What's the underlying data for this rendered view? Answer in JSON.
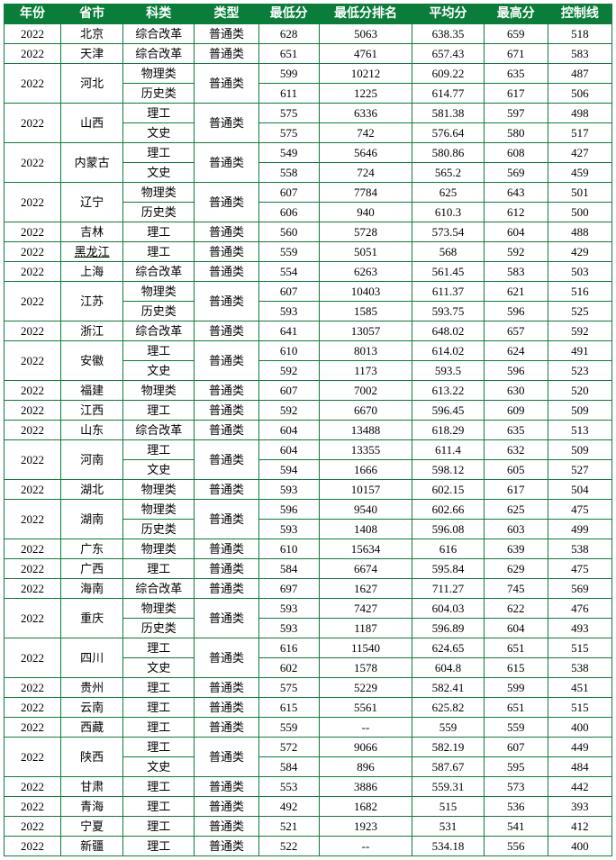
{
  "headers": [
    "年份",
    "省市",
    "科类",
    "类型",
    "最低分",
    "最低分排名",
    "平均分",
    "最高分",
    "控制线"
  ],
  "underlinedProvinces": [
    "黑龙江"
  ],
  "rows": [
    {
      "year": "2022",
      "prov": "北京",
      "subj": "综合改革",
      "type": "普通类",
      "min": "628",
      "rank": "5063",
      "avg": "638.35",
      "max": "659",
      "ctrl": "518"
    },
    {
      "year": "2022",
      "prov": "天津",
      "subj": "综合改革",
      "type": "普通类",
      "min": "651",
      "rank": "4761",
      "avg": "657.43",
      "max": "671",
      "ctrl": "583"
    },
    {
      "year": "2022",
      "prov": "河北",
      "type": "普通类",
      "group": [
        {
          "subj": "物理类",
          "min": "599",
          "rank": "10212",
          "avg": "609.22",
          "max": "635",
          "ctrl": "487"
        },
        {
          "subj": "历史类",
          "min": "611",
          "rank": "1225",
          "avg": "614.77",
          "max": "617",
          "ctrl": "506"
        }
      ]
    },
    {
      "year": "2022",
      "prov": "山西",
      "type": "普通类",
      "group": [
        {
          "subj": "理工",
          "min": "575",
          "rank": "6336",
          "avg": "581.38",
          "max": "597",
          "ctrl": "498"
        },
        {
          "subj": "文史",
          "min": "575",
          "rank": "742",
          "avg": "576.64",
          "max": "580",
          "ctrl": "517"
        }
      ]
    },
    {
      "year": "2022",
      "prov": "内蒙古",
      "type": "普通类",
      "group": [
        {
          "subj": "理工",
          "min": "549",
          "rank": "5646",
          "avg": "580.86",
          "max": "608",
          "ctrl": "427"
        },
        {
          "subj": "文史",
          "min": "558",
          "rank": "724",
          "avg": "565.2",
          "max": "569",
          "ctrl": "459"
        }
      ]
    },
    {
      "year": "2022",
      "prov": "辽宁",
      "type": "普通类",
      "group": [
        {
          "subj": "物理类",
          "min": "607",
          "rank": "7784",
          "avg": "625",
          "max": "643",
          "ctrl": "501"
        },
        {
          "subj": "历史类",
          "min": "606",
          "rank": "940",
          "avg": "610.3",
          "max": "612",
          "ctrl": "500"
        }
      ]
    },
    {
      "year": "2022",
      "prov": "吉林",
      "subj": "理工",
      "type": "普通类",
      "min": "560",
      "rank": "5728",
      "avg": "573.54",
      "max": "604",
      "ctrl": "488"
    },
    {
      "year": "2022",
      "prov": "黑龙江",
      "subj": "理工",
      "type": "普通类",
      "min": "559",
      "rank": "5051",
      "avg": "568",
      "max": "592",
      "ctrl": "429"
    },
    {
      "year": "2022",
      "prov": "上海",
      "subj": "综合改革",
      "type": "普通类",
      "min": "554",
      "rank": "6263",
      "avg": "561.45",
      "max": "583",
      "ctrl": "503"
    },
    {
      "year": "2022",
      "prov": "江苏",
      "type": "普通类",
      "group": [
        {
          "subj": "物理类",
          "min": "607",
          "rank": "10403",
          "avg": "611.37",
          "max": "621",
          "ctrl": "516"
        },
        {
          "subj": "历史类",
          "min": "593",
          "rank": "1585",
          "avg": "593.75",
          "max": "596",
          "ctrl": "525"
        }
      ]
    },
    {
      "year": "2022",
      "prov": "浙江",
      "subj": "综合改革",
      "type": "普通类",
      "min": "641",
      "rank": "13057",
      "avg": "648.02",
      "max": "657",
      "ctrl": "592"
    },
    {
      "year": "2022",
      "prov": "安徽",
      "type": "普通类",
      "group": [
        {
          "subj": "理工",
          "min": "610",
          "rank": "8013",
          "avg": "614.02",
          "max": "624",
          "ctrl": "491"
        },
        {
          "subj": "文史",
          "min": "592",
          "rank": "1173",
          "avg": "593.5",
          "max": "596",
          "ctrl": "523"
        }
      ]
    },
    {
      "year": "2022",
      "prov": "福建",
      "subj": "物理类",
      "type": "普通类",
      "min": "607",
      "rank": "7002",
      "avg": "613.22",
      "max": "630",
      "ctrl": "520"
    },
    {
      "year": "2022",
      "prov": "江西",
      "subj": "理工",
      "type": "普通类",
      "min": "592",
      "rank": "6670",
      "avg": "596.45",
      "max": "609",
      "ctrl": "509"
    },
    {
      "year": "2022",
      "prov": "山东",
      "subj": "综合改革",
      "type": "普通类",
      "min": "604",
      "rank": "13488",
      "avg": "618.29",
      "max": "635",
      "ctrl": "513"
    },
    {
      "year": "2022",
      "prov": "河南",
      "type": "普通类",
      "group": [
        {
          "subj": "理工",
          "min": "604",
          "rank": "13355",
          "avg": "611.4",
          "max": "632",
          "ctrl": "509"
        },
        {
          "subj": "文史",
          "min": "594",
          "rank": "1666",
          "avg": "598.12",
          "max": "605",
          "ctrl": "527"
        }
      ]
    },
    {
      "year": "2022",
      "prov": "湖北",
      "subj": "物理类",
      "type": "普通类",
      "min": "593",
      "rank": "10157",
      "avg": "602.15",
      "max": "617",
      "ctrl": "504"
    },
    {
      "year": "2022",
      "prov": "湖南",
      "type": "普通类",
      "group": [
        {
          "subj": "物理类",
          "min": "596",
          "rank": "9540",
          "avg": "602.66",
          "max": "625",
          "ctrl": "475"
        },
        {
          "subj": "历史类",
          "min": "593",
          "rank": "1408",
          "avg": "596.08",
          "max": "603",
          "ctrl": "499"
        }
      ]
    },
    {
      "year": "2022",
      "prov": "广东",
      "subj": "物理类",
      "type": "普通类",
      "min": "610",
      "rank": "15634",
      "avg": "616",
      "max": "639",
      "ctrl": "538"
    },
    {
      "year": "2022",
      "prov": "广西",
      "subj": "理工",
      "type": "普通类",
      "min": "584",
      "rank": "6674",
      "avg": "595.84",
      "max": "629",
      "ctrl": "475"
    },
    {
      "year": "2022",
      "prov": "海南",
      "subj": "综合改革",
      "type": "普通类",
      "min": "697",
      "rank": "1627",
      "avg": "711.27",
      "max": "745",
      "ctrl": "569"
    },
    {
      "year": "2022",
      "prov": "重庆",
      "type": "普通类",
      "group": [
        {
          "subj": "物理类",
          "min": "593",
          "rank": "7427",
          "avg": "604.03",
          "max": "622",
          "ctrl": "476"
        },
        {
          "subj": "历史类",
          "min": "593",
          "rank": "1187",
          "avg": "596.89",
          "max": "604",
          "ctrl": "493"
        }
      ]
    },
    {
      "year": "2022",
      "prov": "四川",
      "type": "普通类",
      "group": [
        {
          "subj": "理工",
          "min": "616",
          "rank": "11540",
          "avg": "624.65",
          "max": "651",
          "ctrl": "515"
        },
        {
          "subj": "文史",
          "min": "602",
          "rank": "1578",
          "avg": "604.8",
          "max": "615",
          "ctrl": "538"
        }
      ]
    },
    {
      "year": "2022",
      "prov": "贵州",
      "subj": "理工",
      "type": "普通类",
      "min": "575",
      "rank": "5229",
      "avg": "582.41",
      "max": "599",
      "ctrl": "451"
    },
    {
      "year": "2022",
      "prov": "云南",
      "subj": "理工",
      "type": "普通类",
      "min": "615",
      "rank": "5561",
      "avg": "625.82",
      "max": "651",
      "ctrl": "515"
    },
    {
      "year": "2022",
      "prov": "西藏",
      "subj": "理工",
      "type": "普通类",
      "min": "559",
      "rank": "--",
      "avg": "559",
      "max": "559",
      "ctrl": "400"
    },
    {
      "year": "2022",
      "prov": "陕西",
      "type": "普通类",
      "group": [
        {
          "subj": "理工",
          "min": "572",
          "rank": "9066",
          "avg": "582.19",
          "max": "607",
          "ctrl": "449"
        },
        {
          "subj": "文史",
          "min": "584",
          "rank": "896",
          "avg": "587.67",
          "max": "595",
          "ctrl": "484"
        }
      ]
    },
    {
      "year": "2022",
      "prov": "甘肃",
      "subj": "理工",
      "type": "普通类",
      "min": "553",
      "rank": "3886",
      "avg": "559.31",
      "max": "573",
      "ctrl": "442"
    },
    {
      "year": "2022",
      "prov": "青海",
      "subj": "理工",
      "type": "普通类",
      "min": "492",
      "rank": "1682",
      "avg": "515",
      "max": "536",
      "ctrl": "393"
    },
    {
      "year": "2022",
      "prov": "宁夏",
      "subj": "理工",
      "type": "普通类",
      "min": "521",
      "rank": "1923",
      "avg": "531",
      "max": "541",
      "ctrl": "412"
    },
    {
      "year": "2022",
      "prov": "新疆",
      "subj": "理工",
      "type": "普通类",
      "min": "522",
      "rank": "--",
      "avg": "534.18",
      "max": "556",
      "ctrl": "400"
    }
  ]
}
